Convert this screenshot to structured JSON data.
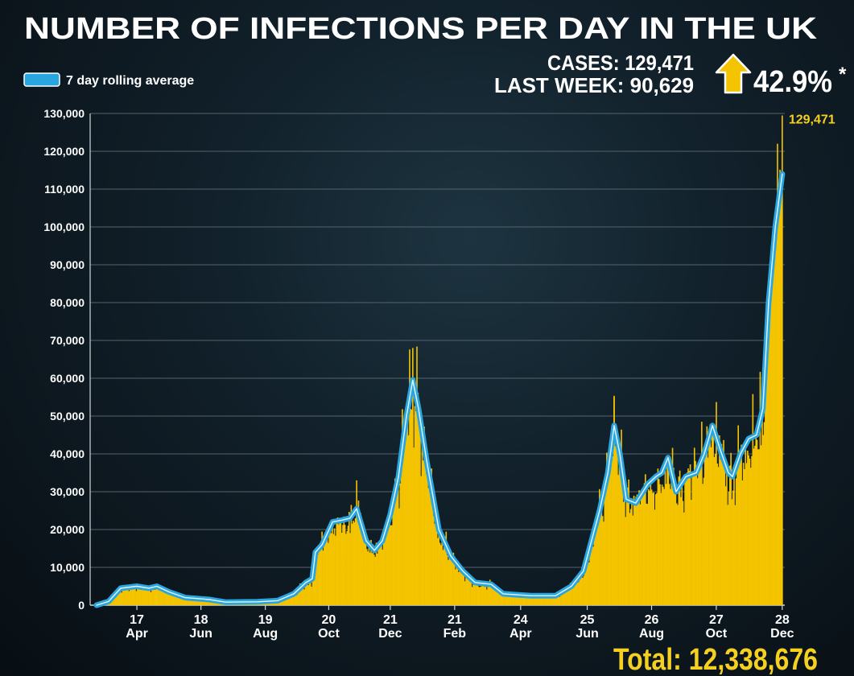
{
  "title": "NUMBER OF INFECTIONS PER DAY IN THE UK",
  "legend_label": "7 day rolling average",
  "stats": {
    "cases": "CASES: 129,471",
    "last_week": "LAST WEEK: 90,629",
    "change": "42.9%",
    "asterisk": "*",
    "arrow_icon": "up-arrow-icon"
  },
  "total": "Total: 12,338,676",
  "colors": {
    "bars": "#f5c400",
    "line": "#2aa6df",
    "text": "#ffffff",
    "highlight": "#f5d020"
  },
  "chart_data": {
    "type": "bar",
    "title": "NUMBER OF INFECTIONS PER DAY IN THE UK",
    "xlabel": "",
    "ylabel": "",
    "x_unit": "months since 1 Mar 2020",
    "xlim": [
      0,
      22.25
    ],
    "ylim": [
      0,
      130000
    ],
    "grid": true,
    "legend": "top-left",
    "y_ticks": [
      0,
      10000,
      20000,
      30000,
      40000,
      50000,
      60000,
      70000,
      80000,
      90000,
      100000,
      110000,
      120000,
      130000
    ],
    "y_tick_labels": [
      "0",
      "10,000",
      "20,000",
      "30,000",
      "40,000",
      "50,000",
      "60,000",
      "70,000",
      "80,000",
      "90,000",
      "100,000",
      "110,000",
      "120,000",
      "130,000"
    ],
    "x_ticks": [
      {
        "x": 1.55,
        "day": "17",
        "month": "Apr"
      },
      {
        "x": 3.57,
        "day": "18",
        "month": "Jun"
      },
      {
        "x": 5.6,
        "day": "19",
        "month": "Aug"
      },
      {
        "x": 7.6,
        "day": "20",
        "month": "Oct"
      },
      {
        "x": 9.54,
        "day": "21",
        "month": "Dec"
      },
      {
        "x": 11.57,
        "day": "21",
        "month": "Feb"
      },
      {
        "x": 13.65,
        "day": "24",
        "month": "Apr"
      },
      {
        "x": 15.75,
        "day": "25",
        "month": "Jun"
      },
      {
        "x": 17.78,
        "day": "26",
        "month": "Aug"
      },
      {
        "x": 19.82,
        "day": "27",
        "month": "Oct"
      },
      {
        "x": 21.9,
        "day": "28",
        "month": "Dec"
      }
    ],
    "annotation": {
      "x": 21.9,
      "value": 129471,
      "label": "129,471"
    },
    "series": [
      {
        "name": "7 day rolling average",
        "type": "line",
        "points": [
          [
            0.28,
            0
          ],
          [
            0.66,
            1000
          ],
          [
            1.04,
            4500
          ],
          [
            1.55,
            5000
          ],
          [
            1.93,
            4500
          ],
          [
            2.18,
            5000
          ],
          [
            2.56,
            3500
          ],
          [
            3.07,
            2000
          ],
          [
            3.83,
            1500
          ],
          [
            4.34,
            800
          ],
          [
            5.36,
            900
          ],
          [
            5.99,
            1200
          ],
          [
            6.5,
            3000
          ],
          [
            6.88,
            6000
          ],
          [
            7.08,
            7000
          ],
          [
            7.18,
            14000
          ],
          [
            7.39,
            16000
          ],
          [
            7.72,
            22000
          ],
          [
            8.02,
            22500
          ],
          [
            8.27,
            23000
          ],
          [
            8.48,
            25500
          ],
          [
            8.78,
            17000
          ],
          [
            9.04,
            14500
          ],
          [
            9.29,
            17000
          ],
          [
            9.54,
            24000
          ],
          [
            9.8,
            34000
          ],
          [
            10.05,
            50000
          ],
          [
            10.25,
            59500
          ],
          [
            10.43,
            52000
          ],
          [
            10.69,
            38000
          ],
          [
            11.07,
            20000
          ],
          [
            11.45,
            13000
          ],
          [
            11.83,
            9000
          ],
          [
            12.21,
            6000
          ],
          [
            12.72,
            5500
          ],
          [
            13.1,
            3000
          ],
          [
            13.99,
            2500
          ],
          [
            14.75,
            2500
          ],
          [
            15.25,
            5000
          ],
          [
            15.63,
            9000
          ],
          [
            16.14,
            25000
          ],
          [
            16.4,
            35000
          ],
          [
            16.6,
            47500
          ],
          [
            16.78,
            40000
          ],
          [
            16.98,
            28000
          ],
          [
            17.28,
            27000
          ],
          [
            17.66,
            32000
          ],
          [
            17.92,
            34000
          ],
          [
            18.1,
            35000
          ],
          [
            18.3,
            39000
          ],
          [
            18.55,
            30000
          ],
          [
            18.86,
            34000
          ],
          [
            19.19,
            35000
          ],
          [
            19.44,
            40000
          ],
          [
            19.7,
            47500
          ],
          [
            19.95,
            41000
          ],
          [
            20.2,
            35000
          ],
          [
            20.33,
            34000
          ],
          [
            20.58,
            40000
          ],
          [
            20.84,
            44000
          ],
          [
            21.09,
            45000
          ],
          [
            21.29,
            52000
          ],
          [
            21.47,
            80000
          ],
          [
            21.68,
            100000
          ],
          [
            21.9,
            114000
          ]
        ]
      },
      {
        "name": "Daily cases",
        "type": "bar",
        "notable": [
          [
            8.48,
            33000
          ],
          [
            10.25,
            68000
          ],
          [
            16.6,
            55000
          ],
          [
            21.75,
            122000
          ],
          [
            21.9,
            129471
          ]
        ]
      }
    ]
  }
}
